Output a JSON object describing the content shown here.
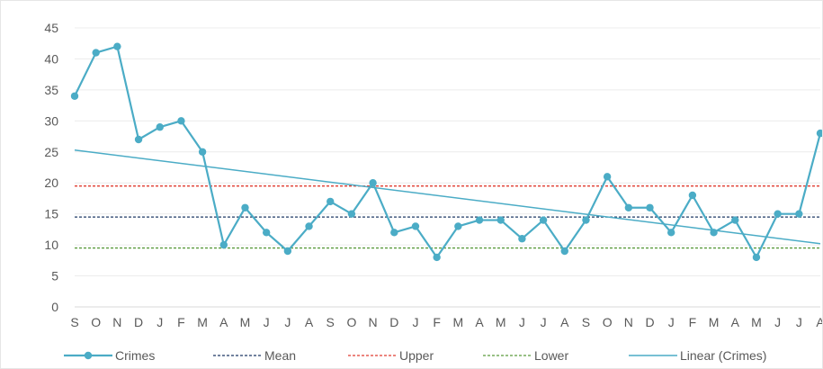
{
  "chart_data": {
    "type": "line",
    "title": "",
    "xlabel": "",
    "ylabel": "",
    "ylim": [
      0,
      45
    ],
    "yticks": [
      0,
      5,
      10,
      15,
      20,
      25,
      30,
      35,
      40,
      45
    ],
    "grid": true,
    "legend_position": "bottom",
    "categories": [
      "S",
      "O",
      "N",
      "D",
      "J",
      "F",
      "M",
      "A",
      "M",
      "J",
      "J",
      "A",
      "S",
      "O",
      "N",
      "D",
      "J",
      "F",
      "M",
      "A",
      "M",
      "J",
      "J",
      "A",
      "S",
      "O",
      "N",
      "D",
      "J",
      "F",
      "M",
      "A",
      "M",
      "J",
      "J",
      "A"
    ],
    "series": [
      {
        "name": "Crimes",
        "color": "#4bacc6",
        "style": "line-markers",
        "values": [
          34,
          41,
          42,
          27,
          29,
          30,
          25,
          10,
          16,
          12,
          9,
          13,
          17,
          15,
          20,
          12,
          13,
          8,
          13,
          14,
          14,
          11,
          14,
          9,
          14,
          21,
          16,
          16,
          12,
          18,
          12,
          14,
          8,
          15,
          15,
          28
        ]
      },
      {
        "name": "Mean",
        "color": "#1f3864",
        "style": "dashed",
        "value": 14.5
      },
      {
        "name": "Upper",
        "color": "#e03c31",
        "style": "dashed",
        "value": 19.5
      },
      {
        "name": "Lower",
        "color": "#5a9a3c",
        "style": "dashed",
        "value": 9.5
      },
      {
        "name": "Linear (Crimes)",
        "color": "#4bacc6",
        "style": "trendline",
        "start": 25.3,
        "end": 10.2
      }
    ]
  }
}
